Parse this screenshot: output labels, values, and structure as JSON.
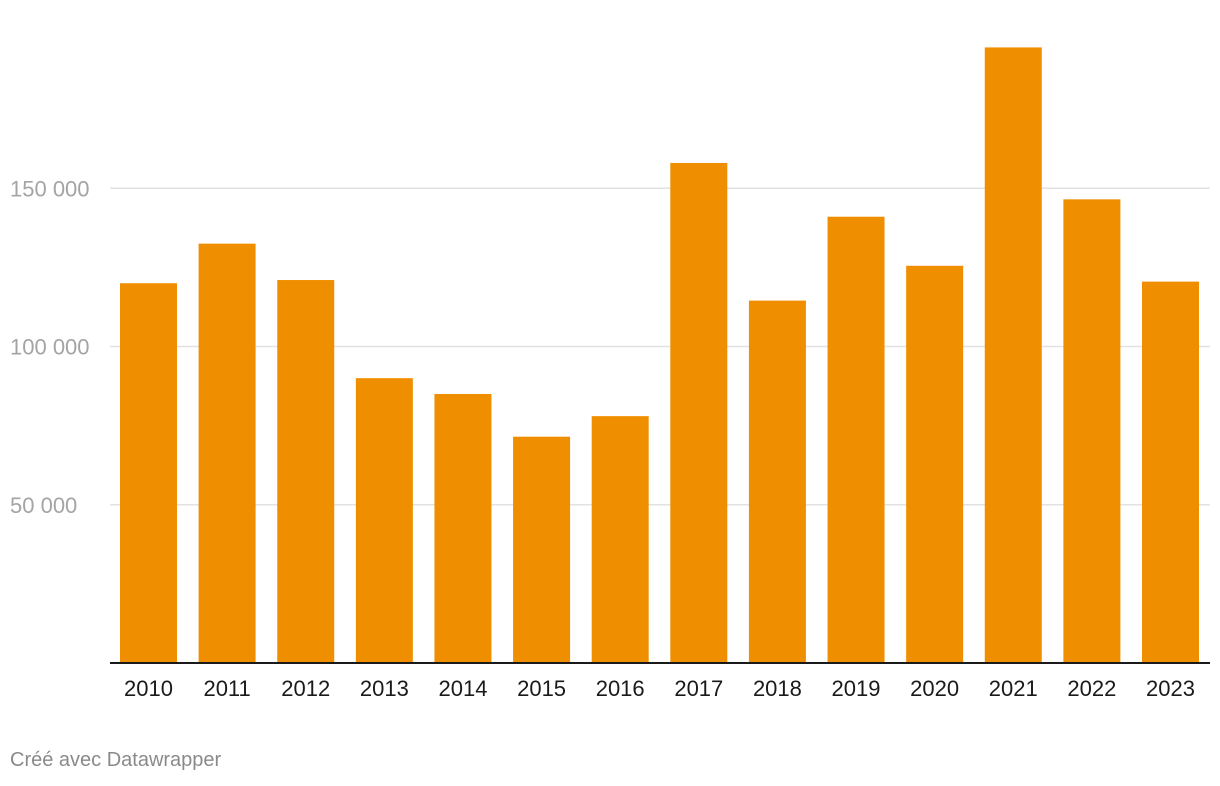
{
  "chart_data": {
    "type": "bar",
    "categories": [
      "2010",
      "2011",
      "2012",
      "2013",
      "2014",
      "2015",
      "2016",
      "2017",
      "2018",
      "2019",
      "2020",
      "2021",
      "2022",
      "2023"
    ],
    "values": [
      120000,
      132500,
      121000,
      90000,
      85000,
      71500,
      78000,
      158000,
      114500,
      141000,
      125500,
      194500,
      146500,
      120500
    ],
    "title": "",
    "xlabel": "",
    "ylabel": "",
    "ylim": [
      0,
      200000
    ],
    "yticks": [
      50000,
      100000,
      150000
    ],
    "ytick_labels": [
      "50 000",
      "100 000",
      "150 000"
    ],
    "grid": true,
    "bar_color": "#ef8f00",
    "gridline_color": "#e2e2e2",
    "baseline_color": "#1a1a1a"
  },
  "footer": {
    "credit": "Créé avec Datawrapper"
  }
}
